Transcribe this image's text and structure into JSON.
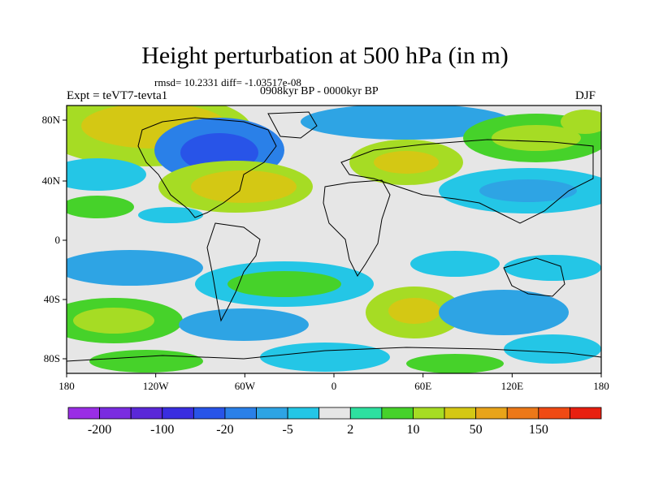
{
  "title": "Height perturbation at 500 hPa (in m)",
  "stats_line": "rmsd= 10.2331 diff= -1.03517e-08",
  "period_line": "0908kyr BP - 0000kyr BP",
  "experiment_label": "Expt = teVT7-tevta1",
  "season_label": "DJF",
  "lat_ticks": [
    "80N",
    "40N",
    "0",
    "40S",
    "80S"
  ],
  "lon_ticks": [
    "180",
    "120W",
    "60W",
    "0",
    "60E",
    "120E",
    "180"
  ],
  "colorbar": {
    "colors": [
      "#9a2ee5",
      "#7a2ce0",
      "#5a28d8",
      "#3a2ee0",
      "#2854e8",
      "#2a80e8",
      "#2ea4e4",
      "#24c6e6",
      "#e6e6e6",
      "#2ee0a0",
      "#46d22a",
      "#a6dc24",
      "#d4c814",
      "#e8a41a",
      "#ec7818",
      "#f04a14",
      "#e82010"
    ],
    "labels": [
      "-200",
      "-100",
      "-20",
      "-5",
      "2",
      "10",
      "50",
      "150"
    ]
  }
}
